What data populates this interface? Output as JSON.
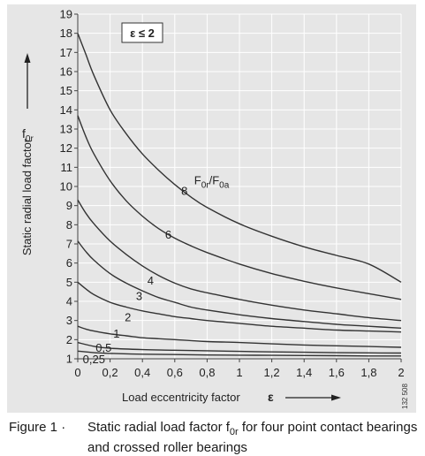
{
  "chart_data": {
    "type": "line",
    "condition": "ε ≤ 2",
    "xlabel": "Load eccentricity factor",
    "xlabel_symbol": "ε",
    "ylabel": "Static radial load factor",
    "ylabel_symbol_main": "f",
    "ylabel_symbol_sub": "0r",
    "xlim": [
      0,
      2
    ],
    "ylim": [
      1,
      19
    ],
    "x_ticks": [
      {
        "v": 0,
        "label": "0"
      },
      {
        "v": 0.2,
        "label": "0,2"
      },
      {
        "v": 0.4,
        "label": "0,4"
      },
      {
        "v": 0.6,
        "label": "0,6"
      },
      {
        "v": 0.8,
        "label": "0,8"
      },
      {
        "v": 1,
        "label": "1"
      },
      {
        "v": 1.2,
        "label": "1,2"
      },
      {
        "v": 1.4,
        "label": "1,4"
      },
      {
        "v": 1.6,
        "label": "1,6"
      },
      {
        "v": 1.8,
        "label": "1,8"
      },
      {
        "v": 2,
        "label": "2"
      }
    ],
    "y_ticks": [
      {
        "v": 1,
        "label": "1"
      },
      {
        "v": 2,
        "label": "2"
      },
      {
        "v": 3,
        "label": "3"
      },
      {
        "v": 4,
        "label": "4"
      },
      {
        "v": 5,
        "label": "5"
      },
      {
        "v": 6,
        "label": "6"
      },
      {
        "v": 7,
        "label": "7"
      },
      {
        "v": 8,
        "label": "8"
      },
      {
        "v": 9,
        "label": "9"
      },
      {
        "v": 10,
        "label": "10"
      },
      {
        "v": 11,
        "label": "11"
      },
      {
        "v": 12,
        "label": "12"
      },
      {
        "v": 13,
        "label": "13"
      },
      {
        "v": 14,
        "label": "14"
      },
      {
        "v": 15,
        "label": "15"
      },
      {
        "v": 16,
        "label": "16"
      },
      {
        "v": 17,
        "label": "17"
      },
      {
        "v": 18,
        "label": "18"
      },
      {
        "v": 19,
        "label": "19"
      }
    ],
    "series_parameter_main": "F",
    "series_parameter_sub1": "0r",
    "series_parameter_sep": "/F",
    "series_parameter_sub2": "0a",
    "series": [
      {
        "name": "8",
        "label_at": [
          0.66,
          9.8
        ],
        "x": [
          0,
          0.05,
          0.1,
          0.2,
          0.3,
          0.4,
          0.5,
          0.6,
          0.7,
          0.8,
          1.0,
          1.2,
          1.4,
          1.6,
          1.8,
          2.0
        ],
        "y": [
          18.0,
          16.9,
          15.8,
          14.0,
          12.75,
          11.7,
          10.85,
          10.1,
          9.45,
          8.9,
          8.05,
          7.4,
          6.85,
          6.4,
          5.95,
          5.0
        ]
      },
      {
        "name": "6",
        "label_at": [
          0.56,
          7.5
        ],
        "x": [
          0,
          0.05,
          0.1,
          0.2,
          0.3,
          0.4,
          0.5,
          0.6,
          0.7,
          0.8,
          1.0,
          1.2,
          1.4,
          1.6,
          1.8,
          2.0
        ],
        "y": [
          13.7,
          12.6,
          11.7,
          10.3,
          9.25,
          8.45,
          7.8,
          7.3,
          6.9,
          6.55,
          5.95,
          5.45,
          5.05,
          4.7,
          4.4,
          4.1
        ]
      },
      {
        "name": "4",
        "label_at": [
          0.45,
          5.1
        ],
        "x": [
          0,
          0.05,
          0.1,
          0.2,
          0.3,
          0.4,
          0.5,
          0.6,
          0.7,
          0.8,
          1.0,
          1.2,
          1.4,
          1.6,
          1.8,
          2.0
        ],
        "y": [
          9.3,
          8.6,
          8.05,
          7.15,
          6.45,
          5.85,
          5.35,
          4.95,
          4.65,
          4.45,
          4.1,
          3.8,
          3.55,
          3.35,
          3.15,
          3.0
        ]
      },
      {
        "name": "3",
        "label_at": [
          0.38,
          4.3
        ],
        "x": [
          0,
          0.05,
          0.1,
          0.2,
          0.3,
          0.4,
          0.5,
          0.6,
          0.7,
          0.8,
          1.0,
          1.2,
          1.4,
          1.6,
          1.8,
          2.0
        ],
        "y": [
          7.15,
          6.6,
          6.15,
          5.45,
          4.95,
          4.55,
          4.2,
          3.95,
          3.7,
          3.55,
          3.3,
          3.1,
          2.95,
          2.8,
          2.7,
          2.6
        ]
      },
      {
        "name": "2",
        "label_at": [
          0.31,
          3.2
        ],
        "x": [
          0,
          0.05,
          0.1,
          0.2,
          0.3,
          0.4,
          0.5,
          0.6,
          0.7,
          0.8,
          1.0,
          1.2,
          1.4,
          1.6,
          1.8,
          2.0
        ],
        "y": [
          5.0,
          4.65,
          4.35,
          3.95,
          3.7,
          3.5,
          3.35,
          3.2,
          3.1,
          3.0,
          2.85,
          2.7,
          2.6,
          2.5,
          2.45,
          2.4
        ]
      },
      {
        "name": "1",
        "label_at": [
          0.24,
          2.35
        ],
        "x": [
          0,
          0.05,
          0.1,
          0.2,
          0.3,
          0.4,
          0.5,
          0.6,
          0.7,
          0.8,
          1.0,
          1.2,
          1.4,
          1.6,
          1.8,
          2.0
        ],
        "y": [
          2.7,
          2.55,
          2.45,
          2.3,
          2.2,
          2.1,
          2.05,
          2.0,
          1.95,
          1.9,
          1.85,
          1.78,
          1.72,
          1.68,
          1.64,
          1.6
        ]
      },
      {
        "name": "0,5",
        "label_at": [
          0.16,
          1.6
        ],
        "x": [
          0,
          0.1,
          0.2,
          0.4,
          0.6,
          0.8,
          1.0,
          1.2,
          1.4,
          1.6,
          1.8,
          2.0
        ],
        "y": [
          1.85,
          1.65,
          1.55,
          1.48,
          1.45,
          1.42,
          1.39,
          1.36,
          1.34,
          1.32,
          1.31,
          1.3
        ]
      },
      {
        "name": "0,25",
        "label_at": [
          0.1,
          1.0
        ],
        "x": [
          0,
          0.1,
          0.2,
          0.4,
          0.6,
          0.8,
          1.0,
          1.2,
          1.4,
          1.6,
          1.8,
          2.0
        ],
        "y": [
          1.4,
          1.32,
          1.28,
          1.24,
          1.22,
          1.2,
          1.19,
          1.18,
          1.17,
          1.16,
          1.15,
          1.15
        ]
      }
    ],
    "series_parameter_at": [
      0.72,
      10.35
    ],
    "colors": {
      "background": "#e6e6e6",
      "curve": "#333333",
      "axis": "#444444"
    }
  },
  "side_code": "132 508",
  "caption": {
    "figure": "Figure 1",
    "separator": "·",
    "text_before_sym": "Static radial load factor f",
    "sym_sub": "0r",
    "text_after_sym": " for four point contact bearings and crossed roller bearings"
  }
}
